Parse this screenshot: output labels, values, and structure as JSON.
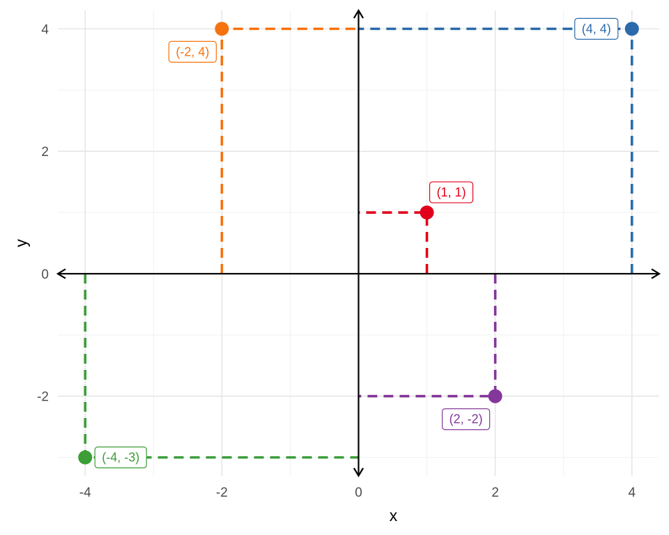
{
  "chart_data": {
    "type": "scatter",
    "title": "",
    "xlabel": "x",
    "ylabel": "y",
    "xlim": [
      -4.4,
      4.4
    ],
    "ylim": [
      -3.3,
      4.3
    ],
    "x_ticks": [
      -4,
      -2,
      0,
      2,
      4
    ],
    "x_tick_labels": [
      "-4",
      "-2",
      "0",
      "2",
      "4"
    ],
    "y_ticks": [
      -2,
      0,
      2,
      4
    ],
    "y_tick_labels": [
      "-2",
      "0",
      "2",
      "4"
    ],
    "x_minor": [
      -3,
      -1,
      1,
      3
    ],
    "y_minor": [
      -3,
      -1,
      1,
      3
    ],
    "grid": true,
    "legend": "none",
    "points": [
      {
        "x": 1,
        "y": 1,
        "label": "(1, 1)",
        "color": "#e0001b",
        "label_side": "upper-right"
      },
      {
        "x": 4,
        "y": 4,
        "label": "(4, 4)",
        "color": "#2b6aab",
        "label_side": "left"
      },
      {
        "x": -2,
        "y": 4,
        "label": "(-2, 4)",
        "color": "#f5730f",
        "label_side": "lower-left"
      },
      {
        "x": -4,
        "y": -3,
        "label": "(-4, -3)",
        "color": "#3b9e37",
        "label_side": "right"
      },
      {
        "x": 2,
        "y": -2,
        "label": "(2, -2)",
        "color": "#83379b",
        "label_side": "lower-left"
      }
    ]
  }
}
